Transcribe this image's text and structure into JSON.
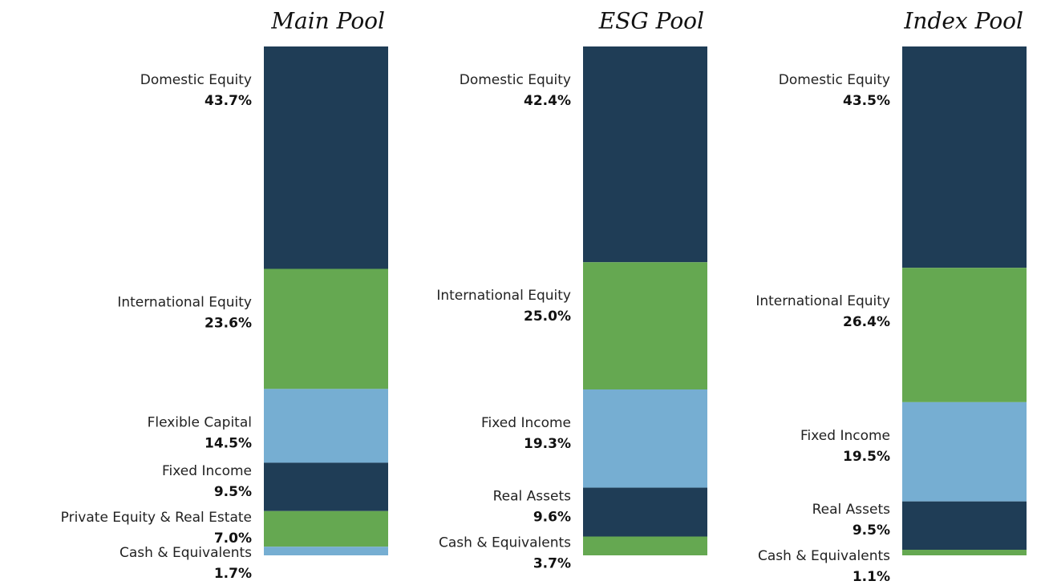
{
  "chart_data": [
    {
      "type": "stacked_bar",
      "title": "Main Pool",
      "categories": [
        "Domestic Equity",
        "International Equity",
        "Flexible Capital",
        "Fixed Income",
        "Private Equity & Real Estate",
        "Cash & Equivalents"
      ],
      "values": [
        43.7,
        23.6,
        14.5,
        9.5,
        7.0,
        1.7
      ],
      "value_labels": [
        "43.7%",
        "23.6%",
        "14.5%",
        "9.5%",
        "7.0%",
        "1.7%"
      ],
      "colors": [
        "#1f3d56",
        "#65a851",
        "#76aed2",
        "#1f3d56",
        "#65a851",
        "#76aed2"
      ]
    },
    {
      "type": "stacked_bar",
      "title": "ESG Pool",
      "categories": [
        "Domestic Equity",
        "International Equity",
        "Fixed Income",
        "Real Assets",
        "Cash & Equivalents"
      ],
      "values": [
        42.4,
        25.0,
        19.3,
        9.6,
        3.7
      ],
      "value_labels": [
        "42.4%",
        "25.0%",
        "19.3%",
        "9.6%",
        "3.7%"
      ],
      "colors": [
        "#1f3d56",
        "#65a851",
        "#76aed2",
        "#1f3d56",
        "#65a851"
      ]
    },
    {
      "type": "stacked_bar",
      "title": "Index Pool",
      "categories": [
        "Domestic Equity",
        "International Equity",
        "Fixed Income",
        "Real Assets",
        "Cash & Equivalents"
      ],
      "values": [
        43.5,
        26.4,
        19.5,
        9.5,
        1.1
      ],
      "value_labels": [
        "43.5%",
        "26.4%",
        "19.5%",
        "9.5%",
        "1.1%"
      ],
      "colors": [
        "#1f3d56",
        "#65a851",
        "#76aed2",
        "#1f3d56",
        "#65a851"
      ]
    }
  ]
}
